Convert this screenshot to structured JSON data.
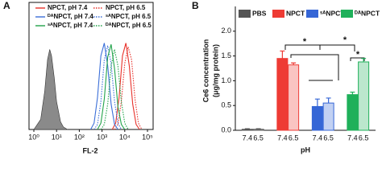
{
  "chart_data": [
    {
      "type": "line",
      "label": "A",
      "xlabel": "FL-2",
      "xscale": "log",
      "xlim": [
        1,
        100000
      ],
      "xticks": [
        {
          "value": 1,
          "label": "10⁰"
        },
        {
          "value": 10,
          "label": "10¹"
        },
        {
          "value": 100,
          "label": "10²"
        },
        {
          "value": 1000,
          "label": "10³"
        },
        {
          "value": 10000,
          "label": "10⁴"
        },
        {
          "value": 100000,
          "label": "10⁵"
        }
      ],
      "ylim": [
        0,
        100
      ],
      "series": [
        {
          "color": "#8a8a8a",
          "fill": true,
          "style": "solid",
          "x": [
            1,
            2,
            3,
            4,
            5,
            6,
            8,
            10,
            15,
            20,
            30
          ],
          "values": [
            0,
            8,
            30,
            55,
            63,
            58,
            40,
            22,
            6,
            2,
            0
          ]
        },
        {
          "name": "NPCT, pH 7.4",
          "color": "#e8312a",
          "style": "solid",
          "x": [
            2818,
            3981,
            5623,
            7943,
            11220,
            15849,
            22387,
            31623,
            44668
          ],
          "values": [
            0,
            5,
            25,
            58,
            68,
            50,
            20,
            4,
            0
          ]
        },
        {
          "name": "NPCT, pH 6.5",
          "color": "#e8312a",
          "style": "dotted",
          "x": [
            3548,
            5012,
            7079,
            10000,
            14125,
            19953,
            28184,
            39811,
            56234
          ],
          "values": [
            0,
            4,
            22,
            52,
            65,
            55,
            24,
            5,
            0
          ]
        },
        {
          "name": "ᴰᴬNPCT, pH 7.4",
          "color": "#3b6fd8",
          "style": "solid",
          "x": [
            316,
            447,
            631,
            891,
            1259,
            1778,
            2512,
            3548,
            5012
          ],
          "values": [
            0,
            5,
            25,
            58,
            68,
            50,
            20,
            4,
            0
          ]
        },
        {
          "name": "ˢᴬNPCT, pH 6.5",
          "color": "#3b6fd8",
          "style": "dotted",
          "x": [
            447,
            631,
            891,
            1259,
            1778,
            2512,
            3548,
            5012,
            7079
          ],
          "values": [
            0,
            4,
            22,
            55,
            66,
            52,
            22,
            5,
            0
          ]
        },
        {
          "name": "ˢᴬNPCT, pH 7.4",
          "color": "#22a34a",
          "style": "solid",
          "x": [
            631,
            891,
            1259,
            1778,
            2512,
            3548,
            5012,
            7079,
            10000
          ],
          "values": [
            0,
            5,
            24,
            57,
            67,
            48,
            18,
            4,
            0
          ]
        },
        {
          "name": "ᴰᴬNPCT, pH 6.5",
          "color": "#22a34a",
          "style": "dotted",
          "x": [
            891,
            1259,
            1778,
            2512,
            3548,
            5012,
            7079,
            10000,
            14125
          ],
          "values": [
            0,
            4,
            20,
            50,
            63,
            50,
            22,
            5,
            0
          ]
        }
      ]
    },
    {
      "type": "bar",
      "label": "B",
      "xlabel": "pH",
      "ylabel": [
        "Ce6 concentration",
        "(μg/mg protein)"
      ],
      "categories": [
        "7.4",
        "6.5",
        "7.4",
        "6.5",
        "7.4",
        "6.5",
        "7.4",
        "6.5"
      ],
      "ylim": [
        0,
        2.5
      ],
      "yticks": [
        {
          "value": 0,
          "label": "0.0"
        },
        {
          "value": 0.5,
          "label": "0.5"
        },
        {
          "value": 1,
          "label": "1.0"
        },
        {
          "value": 1.5,
          "label": "1.5"
        },
        {
          "value": 2,
          "label": "2.0"
        }
      ],
      "series": [
        {
          "name": "PBS",
          "color": "#555555",
          "values": [
            0.02,
            0.02,
            null,
            null,
            null,
            null,
            null,
            null
          ],
          "errors": [
            0.01,
            0.01,
            null,
            null,
            null,
            null,
            null,
            null
          ]
        },
        {
          "name": "NPCT",
          "color": "#ee3b34",
          "values": [
            null,
            null,
            1.45,
            1.32,
            null,
            null,
            null,
            null
          ],
          "errors": [
            null,
            null,
            0.15,
            0.04,
            null,
            null,
            null,
            null
          ]
        },
        {
          "name": "ˢᴬNPCT",
          "color": "#3566d6",
          "values": [
            null,
            null,
            null,
            null,
            0.48,
            0.55,
            null,
            null
          ],
          "errors": [
            null,
            null,
            null,
            null,
            0.15,
            0.1,
            null,
            null
          ]
        },
        {
          "name": "ᴰᴬNPCT",
          "color": "#1fb05a",
          "values": [
            null,
            null,
            null,
            null,
            null,
            null,
            0.72,
            1.38
          ],
          "errors": [
            null,
            null,
            null,
            null,
            null,
            null,
            0.05,
            0.07
          ]
        }
      ],
      "annotations": [
        "*",
        "*",
        "*"
      ]
    }
  ]
}
